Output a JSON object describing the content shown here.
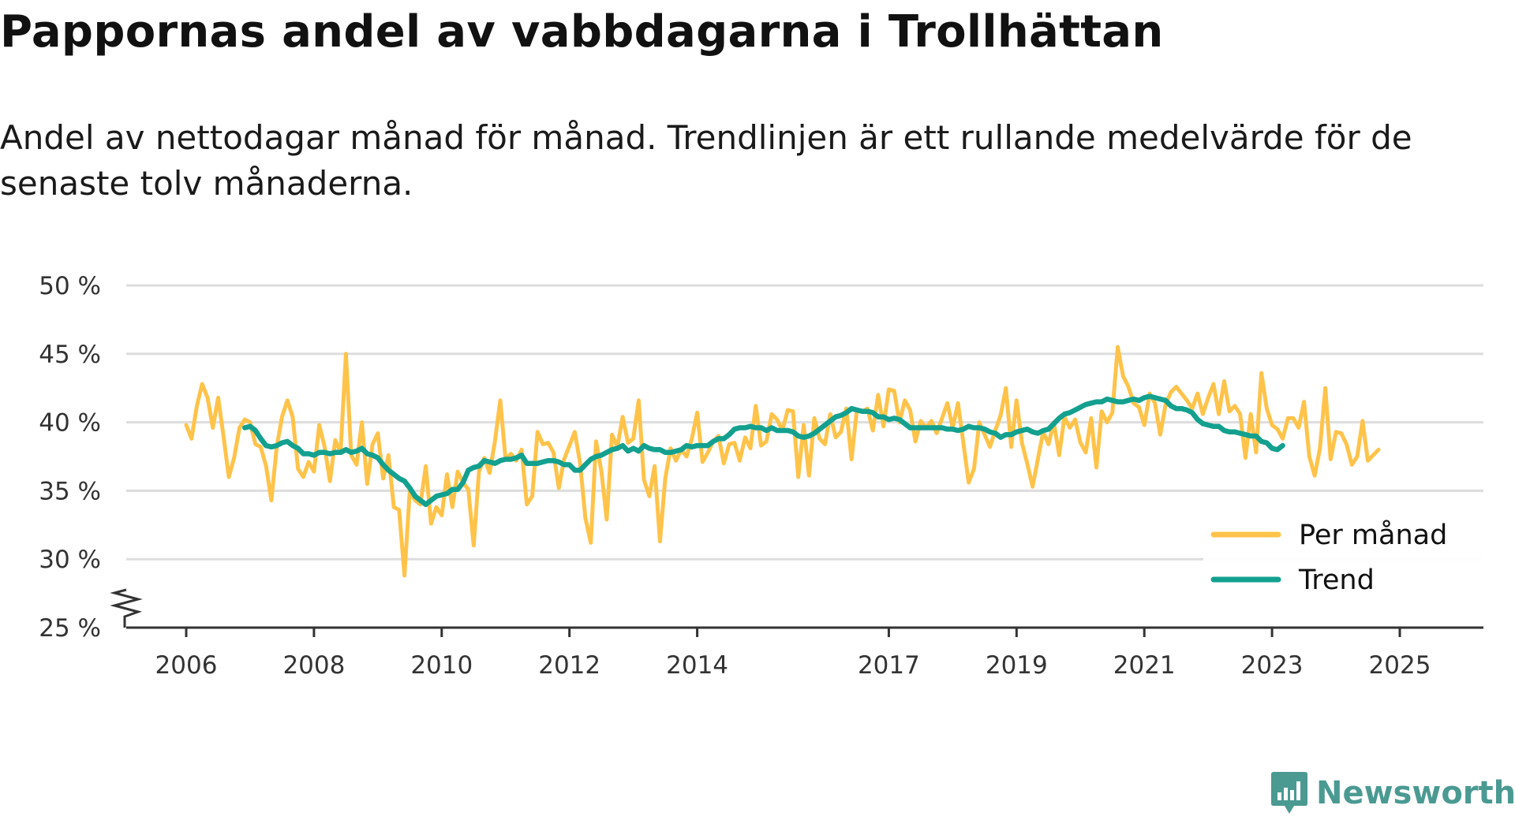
{
  "title": "Pappornas andel av vabbdagarna i Trollhättan",
  "subtitle": "Andel av nettodagar månad för månad. Trendlinjen är ett rullande medelvärde för de senaste tolv månaderna.",
  "brand": "Newsworthy",
  "colors": {
    "monthly": "#ffc34a",
    "trend": "#13a08f",
    "grid": "#dddddd",
    "axis": "#333333",
    "brand": "#4a9a92"
  },
  "chart_data": {
    "type": "line",
    "title": "Pappornas andel av vabbdagarna i Trollhättan",
    "xlabel": "",
    "ylabel": "",
    "xlim": [
      2006,
      2026.3
    ],
    "ylim": [
      25,
      50
    ],
    "yticks": [
      25,
      30,
      35,
      40,
      45,
      50
    ],
    "ytick_labels": [
      "25 %",
      "30 %",
      "35 %",
      "40 %",
      "45 %",
      "50 %"
    ],
    "xticks": [
      2006,
      2008,
      2010,
      2012,
      2014,
      2017,
      2019,
      2021,
      2023,
      2025
    ],
    "xtick_labels": [
      "2006",
      "2008",
      "2010",
      "2012",
      "2014",
      "2017",
      "2019",
      "2021",
      "2023",
      "2025"
    ],
    "axis_break": true,
    "legend": {
      "position": "bottom-right",
      "entries": [
        "Per månad",
        "Trend"
      ]
    },
    "series": [
      {
        "name": "Per månad",
        "x_start": 2006.0,
        "step": 0.0833333,
        "values": [
          39.8,
          38.8,
          41.2,
          42.8,
          41.8,
          39.6,
          41.8,
          39.0,
          36.0,
          37.4,
          39.6,
          40.2,
          40.0,
          38.4,
          38.2,
          36.8,
          34.3,
          38.2,
          40.4,
          41.6,
          40.4,
          36.6,
          36.0,
          37.1,
          36.4,
          39.8,
          38.2,
          35.7,
          38.7,
          37.8,
          45.0,
          37.6,
          36.9,
          40.0,
          35.5,
          38.4,
          39.2,
          35.9,
          37.6,
          33.8,
          33.6,
          28.8,
          35.0,
          34.3,
          34.0,
          36.8,
          32.6,
          33.8,
          33.2,
          36.2,
          33.8,
          36.4,
          35.6,
          35.1,
          31.0,
          36.4,
          37.4,
          36.3,
          38.6,
          41.6,
          37.3,
          37.7,
          37.2,
          38.0,
          34.0,
          34.6,
          39.3,
          38.4,
          38.5,
          37.8,
          35.2,
          37.3,
          38.3,
          39.3,
          37.0,
          33.0,
          31.2,
          38.6,
          36.4,
          32.9,
          39.1,
          38.2,
          40.4,
          38.5,
          38.8,
          41.6,
          35.8,
          34.6,
          36.8,
          31.3,
          35.9,
          38.1,
          37.2,
          38.0,
          37.5,
          38.8,
          40.7,
          37.1,
          37.8,
          38.6,
          39.0,
          37.0,
          38.4,
          38.5,
          37.2,
          38.9,
          38.1,
          41.2,
          38.3,
          38.6,
          40.6,
          40.2,
          39.4,
          40.9,
          40.8,
          36.0,
          39.8,
          36.1,
          40.3,
          38.8,
          38.4,
          40.6,
          38.9,
          39.3,
          41.0,
          37.3,
          40.9,
          40.8,
          41.0,
          39.4,
          42.0,
          39.7,
          42.4,
          42.3,
          40.0,
          41.6,
          40.9,
          38.6,
          40.1,
          39.6,
          40.1,
          39.2,
          40.3,
          41.4,
          39.6,
          41.4,
          38.5,
          35.6,
          36.6,
          40.0,
          39.1,
          38.2,
          39.4,
          40.5,
          42.5,
          38.2,
          41.6,
          38.5,
          37.0,
          35.3,
          37.3,
          39.3,
          38.4,
          40.0,
          37.6,
          40.4,
          39.6,
          40.2,
          38.5,
          37.8,
          40.3,
          36.7,
          40.8,
          40.0,
          40.7,
          45.5,
          43.4,
          42.6,
          41.4,
          41.1,
          39.8,
          42.1,
          41.4,
          39.1,
          41.3,
          42.2,
          42.6,
          42.1,
          41.6,
          41.0,
          42.1,
          40.6,
          41.8,
          42.8,
          40.6,
          43.0,
          40.8,
          41.2,
          40.6,
          37.4,
          40.6,
          37.8,
          43.6,
          41.0,
          39.8,
          39.5,
          38.8,
          40.3,
          40.3,
          39.6,
          41.5,
          37.5,
          36.1,
          38.1,
          42.5,
          37.3,
          39.3,
          39.2,
          38.4,
          36.9,
          37.5,
          40.1,
          37.2,
          37.6,
          38.0
        ]
      },
      {
        "name": "Trend",
        "x_start": 2006.917,
        "step": 0.0833333,
        "values": [
          39.6,
          39.7,
          39.4,
          38.8,
          38.3,
          38.2,
          38.3,
          38.5,
          38.6,
          38.3,
          38.1,
          37.7,
          37.7,
          37.6,
          37.8,
          37.8,
          37.7,
          37.8,
          37.8,
          38.0,
          37.8,
          37.9,
          38.1,
          37.7,
          37.6,
          37.4,
          36.9,
          36.5,
          36.2,
          35.9,
          35.7,
          35.2,
          34.6,
          34.3,
          34.0,
          34.3,
          34.6,
          34.7,
          34.8,
          35.1,
          35.1,
          35.6,
          36.5,
          36.7,
          36.8,
          37.2,
          37.1,
          37.0,
          37.2,
          37.3,
          37.3,
          37.4,
          37.6,
          37.0,
          37.0,
          37.0,
          37.1,
          37.2,
          37.2,
          37.1,
          36.9,
          36.9,
          36.5,
          36.5,
          36.9,
          37.3,
          37.5,
          37.6,
          37.8,
          38.0,
          38.1,
          38.3,
          37.9,
          38.1,
          37.9,
          38.3,
          38.1,
          38.0,
          38.0,
          37.8,
          37.8,
          37.9,
          38.0,
          38.3,
          38.2,
          38.3,
          38.3,
          38.3,
          38.6,
          38.8,
          38.8,
          39.1,
          39.5,
          39.6,
          39.6,
          39.7,
          39.6,
          39.6,
          39.4,
          39.6,
          39.4,
          39.4,
          39.4,
          39.3,
          39.0,
          38.9,
          39.0,
          39.2,
          39.5,
          39.8,
          40.1,
          40.4,
          40.5,
          40.7,
          41.0,
          40.9,
          40.8,
          40.8,
          40.7,
          40.4,
          40.4,
          40.2,
          40.3,
          40.2,
          39.9,
          39.6,
          39.6,
          39.6,
          39.6,
          39.6,
          39.6,
          39.6,
          39.5,
          39.5,
          39.4,
          39.5,
          39.7,
          39.6,
          39.6,
          39.5,
          39.3,
          39.2,
          38.9,
          39.1,
          39.1,
          39.3,
          39.4,
          39.5,
          39.3,
          39.2,
          39.4,
          39.5,
          39.9,
          40.3,
          40.6,
          40.7,
          40.9,
          41.1,
          41.3,
          41.4,
          41.5,
          41.5,
          41.7,
          41.6,
          41.5,
          41.5,
          41.6,
          41.7,
          41.6,
          41.8,
          41.9,
          41.8,
          41.7,
          41.6,
          41.2,
          41.0,
          41.0,
          40.9,
          40.7,
          40.2,
          39.9,
          39.8,
          39.7,
          39.7,
          39.4,
          39.3,
          39.3,
          39.2,
          39.1,
          39.0,
          39.0,
          38.6,
          38.5,
          38.1,
          38.0,
          38.3
        ]
      }
    ]
  }
}
